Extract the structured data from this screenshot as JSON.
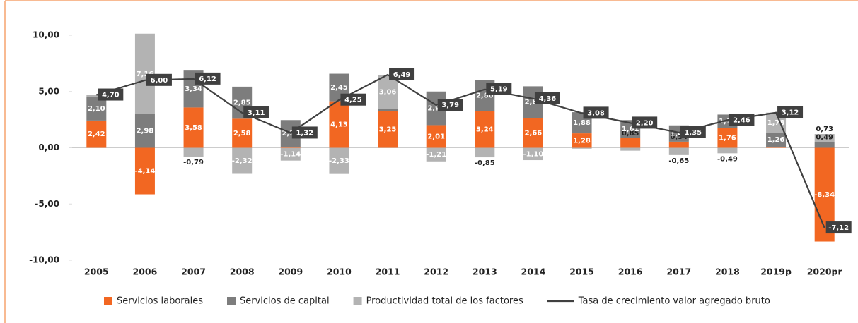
{
  "chart_data": {
    "type": "stacked_bar_line",
    "categories": [
      "2005",
      "2006",
      "2007",
      "2008",
      "2009",
      "2010",
      "2011",
      "2012",
      "2013",
      "2014",
      "2015",
      "2016",
      "2017",
      "2018",
      "2019p",
      "2020pr"
    ],
    "series": [
      {
        "name": "Servicios laborales",
        "color": "#f26722",
        "values": [
          2.42,
          -4.14,
          3.58,
          2.58,
          0.09,
          4.13,
          3.25,
          2.01,
          3.24,
          2.66,
          1.28,
          0.85,
          0.54,
          1.76,
          0.08,
          -8.34
        ],
        "value_labels": [
          "2,42",
          "-4,14",
          "3,58",
          "2,58",
          null,
          "4,13",
          "3,25",
          "2,01",
          "3,24",
          "2,66",
          "1,28",
          "0,85",
          "0,54",
          "1,76",
          null,
          "-8,34"
        ]
      },
      {
        "name": "Servicios de capital",
        "color": "#7d7d7d",
        "values": [
          2.1,
          2.98,
          3.34,
          2.85,
          2.37,
          2.45,
          0.18,
          2.99,
          2.8,
          2.8,
          1.88,
          1.61,
          1.45,
          1.19,
          1.26,
          0.49
        ],
        "value_labels": [
          "2,10",
          "2,98",
          "3,34",
          "2,85",
          "2,37",
          "2,45",
          null,
          "2,99",
          "2,80",
          "2,80",
          "1,88",
          "1,61",
          "1,45",
          "1,19",
          "1,26",
          "0,49"
        ]
      },
      {
        "name": "Productividad total de los factores",
        "color": "#b3b3b3",
        "values": [
          0.18,
          7.16,
          -0.79,
          -2.32,
          -1.14,
          -2.33,
          3.06,
          -1.21,
          -0.85,
          -1.1,
          -0.08,
          -0.26,
          -0.65,
          -0.49,
          1.78,
          0.73
        ],
        "value_labels": [
          null,
          "7,16",
          "-0,79",
          "-2,32",
          "-1,14",
          "-2,33",
          "3,06",
          "-1,21",
          "-0,85",
          "-1,10",
          null,
          null,
          "-0,65",
          "-0,49",
          "1,78",
          "0,73"
        ]
      },
      {
        "name": "Tasa de crecimiento valor agregado bruto",
        "color": "#404040",
        "kind": "line",
        "values": [
          4.7,
          6.0,
          6.12,
          3.11,
          1.32,
          4.25,
          6.49,
          3.79,
          5.19,
          4.36,
          3.08,
          2.2,
          1.35,
          2.46,
          3.12,
          -7.12
        ],
        "value_labels": [
          "4,70",
          "6,00",
          "6,12",
          "3,11",
          "1,32",
          "4,25",
          "6,49",
          "3,79",
          "5,19",
          "4,36",
          "3,08",
          "2,20",
          "1,35",
          "2,46",
          "3,12",
          "-7,12"
        ]
      }
    ],
    "ylim": [
      -10,
      10
    ],
    "yticks": [
      {
        "value": -10,
        "label": "-10,00"
      },
      {
        "value": -5,
        "label": "-5,00"
      },
      {
        "value": 0,
        "label": "0,00"
      },
      {
        "value": 5,
        "label": "5,00"
      },
      {
        "value": 10,
        "label": "10,00"
      }
    ],
    "legend": "bottom"
  }
}
